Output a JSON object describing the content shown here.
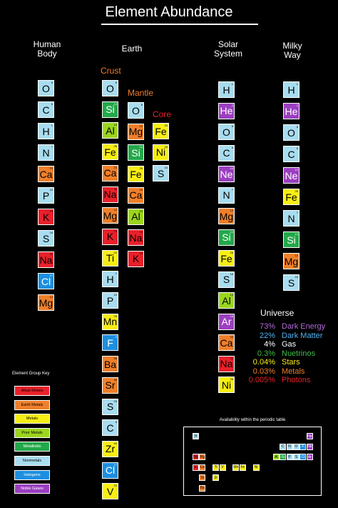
{
  "title": "Element Abundance",
  "colors": {
    "nonmetal": "#a8dcef",
    "noble": "#9b3fc0",
    "alkali": "#e8202a",
    "earth": "#f07f2a",
    "metal": "#f7ee14",
    "poor": "#9bd51d",
    "metalloid": "#23a84a",
    "halogen": "#1d8fe0"
  },
  "columns": {
    "human": {
      "heading_line1": "Human",
      "heading_line2": "Body",
      "elements": [
        {
          "sym": "O",
          "num": "8",
          "g": "nonmetal"
        },
        {
          "sym": "C",
          "num": "6",
          "g": "nonmetal"
        },
        {
          "sym": "H",
          "num": "1",
          "g": "nonmetal"
        },
        {
          "sym": "N",
          "num": "7",
          "g": "nonmetal"
        },
        {
          "sym": "Ca",
          "num": "20",
          "g": "earth"
        },
        {
          "sym": "P",
          "num": "15",
          "g": "nonmetal"
        },
        {
          "sym": "K",
          "num": "19",
          "g": "alkali"
        },
        {
          "sym": "S",
          "num": "16",
          "g": "nonmetal"
        },
        {
          "sym": "Na",
          "num": "11",
          "g": "alkali"
        },
        {
          "sym": "Cl",
          "num": "17",
          "g": "halogen"
        },
        {
          "sym": "Mg",
          "num": "12",
          "g": "earth"
        }
      ]
    },
    "earth": {
      "heading": "Earth",
      "crust_label": "Crust",
      "mantle_label": "Mantle",
      "core_label": "Core",
      "crust": [
        {
          "sym": "O",
          "num": "8",
          "g": "nonmetal"
        },
        {
          "sym": "Si",
          "num": "14",
          "g": "metalloid"
        },
        {
          "sym": "Al",
          "num": "13",
          "g": "poor"
        },
        {
          "sym": "Fe",
          "num": "26",
          "g": "metal"
        },
        {
          "sym": "Ca",
          "num": "20",
          "g": "earth"
        },
        {
          "sym": "Na",
          "num": "11",
          "g": "alkali"
        },
        {
          "sym": "Mg",
          "num": "12",
          "g": "earth"
        },
        {
          "sym": "K",
          "num": "19",
          "g": "alkali"
        },
        {
          "sym": "Ti",
          "num": "22",
          "g": "metal"
        },
        {
          "sym": "H",
          "num": "1",
          "g": "nonmetal"
        },
        {
          "sym": "P",
          "num": "15",
          "g": "nonmetal"
        },
        {
          "sym": "Mn",
          "num": "25",
          "g": "metal"
        },
        {
          "sym": "F",
          "num": "9",
          "g": "halogen"
        },
        {
          "sym": "Ba",
          "num": "56",
          "g": "earth"
        },
        {
          "sym": "Sr",
          "num": "38",
          "g": "earth"
        },
        {
          "sym": "S",
          "num": "16",
          "g": "nonmetal"
        },
        {
          "sym": "C",
          "num": "6",
          "g": "nonmetal"
        },
        {
          "sym": "Zr",
          "num": "40",
          "g": "metal"
        },
        {
          "sym": "Cl",
          "num": "17",
          "g": "halogen"
        },
        {
          "sym": "V",
          "num": "23",
          "g": "metal"
        }
      ],
      "mantle": [
        {
          "sym": "O",
          "num": "8",
          "g": "nonmetal"
        },
        {
          "sym": "Mg",
          "num": "12",
          "g": "earth"
        },
        {
          "sym": "Si",
          "num": "14",
          "g": "metalloid"
        },
        {
          "sym": "Fe",
          "num": "26",
          "g": "metal"
        },
        {
          "sym": "Ca",
          "num": "20",
          "g": "earth"
        },
        {
          "sym": "Al",
          "num": "13",
          "g": "poor"
        },
        {
          "sym": "Na",
          "num": "11",
          "g": "alkali"
        },
        {
          "sym": "K",
          "num": "19",
          "g": "alkali"
        }
      ],
      "core": [
        {
          "sym": "Fe",
          "num": "26",
          "g": "metal"
        },
        {
          "sym": "Ni",
          "num": "28",
          "g": "metal"
        },
        {
          "sym": "S",
          "num": "16",
          "g": "nonmetal"
        }
      ]
    },
    "solar": {
      "heading_line1": "Solar",
      "heading_line2": "System",
      "elements": [
        {
          "sym": "H",
          "num": "1",
          "g": "nonmetal"
        },
        {
          "sym": "He",
          "num": "2",
          "g": "noble"
        },
        {
          "sym": "O",
          "num": "8",
          "g": "nonmetal"
        },
        {
          "sym": "C",
          "num": "6",
          "g": "nonmetal"
        },
        {
          "sym": "Ne",
          "num": "10",
          "g": "noble"
        },
        {
          "sym": "N",
          "num": "7",
          "g": "nonmetal"
        },
        {
          "sym": "Mg",
          "num": "12",
          "g": "earth"
        },
        {
          "sym": "Si",
          "num": "14",
          "g": "metalloid"
        },
        {
          "sym": "Fe",
          "num": "26",
          "g": "metal"
        },
        {
          "sym": "S",
          "num": "16",
          "g": "nonmetal"
        },
        {
          "sym": "Al",
          "num": "13",
          "g": "poor"
        },
        {
          "sym": "Ar",
          "num": "18",
          "g": "noble"
        },
        {
          "sym": "Ca",
          "num": "20",
          "g": "earth"
        },
        {
          "sym": "Na",
          "num": "11",
          "g": "alkali"
        },
        {
          "sym": "Ni",
          "num": "28",
          "g": "metal"
        }
      ]
    },
    "milky": {
      "heading_line1": "Milky",
      "heading_line2": "Way",
      "elements": [
        {
          "sym": "H",
          "num": "1",
          "g": "nonmetal"
        },
        {
          "sym": "He",
          "num": "2",
          "g": "noble"
        },
        {
          "sym": "O",
          "num": "8",
          "g": "nonmetal"
        },
        {
          "sym": "C",
          "num": "6",
          "g": "nonmetal"
        },
        {
          "sym": "Ne",
          "num": "10",
          "g": "noble"
        },
        {
          "sym": "Fe",
          "num": "26",
          "g": "metal"
        },
        {
          "sym": "N",
          "num": "7",
          "g": "nonmetal"
        },
        {
          "sym": "Si",
          "num": "14",
          "g": "metalloid"
        },
        {
          "sym": "Mg",
          "num": "12",
          "g": "earth"
        },
        {
          "sym": "S",
          "num": "16",
          "g": "nonmetal"
        }
      ]
    }
  },
  "universe": {
    "heading": "Universe",
    "rows": [
      {
        "pct": "73%",
        "label": "Dark Energy",
        "color": "#b36ad9"
      },
      {
        "pct": "22%",
        "label": "Dark Matter",
        "color": "#4fb3f2"
      },
      {
        "pct": "4%",
        "label": "Gas",
        "color": "#ffffff"
      },
      {
        "pct": "0.3%",
        "label": "Nuetrinos",
        "color": "#3fbf4a"
      },
      {
        "pct": "0.04%",
        "label": "Stars",
        "color": "#f7ee14"
      },
      {
        "pct": "0.03%",
        "label": "Metals",
        "color": "#f07f2a"
      },
      {
        "pct": "0.005%",
        "label": "Photons",
        "color": "#e8202a"
      }
    ]
  },
  "key": {
    "title": "Element Group Key",
    "items": [
      {
        "label": "Alkali Metals",
        "g": "alkali"
      },
      {
        "label": "Earth Metals",
        "g": "earth"
      },
      {
        "label": "Metals",
        "g": "metal"
      },
      {
        "label": "Poor Metals",
        "g": "poor"
      },
      {
        "label": "Metalloids",
        "g": "metalloid"
      },
      {
        "label": "Nonmetals",
        "g": "nonmetal"
      },
      {
        "label": "Halogens",
        "g": "halogen"
      },
      {
        "label": "Noble Gases",
        "g": "noble"
      }
    ]
  },
  "periodic": {
    "title": "Availability within the periodic table",
    "cells": [
      {
        "sym": "H",
        "row": 1,
        "col": 1,
        "g": "nonmetal"
      },
      {
        "sym": "He",
        "row": 1,
        "col": 18,
        "g": "noble"
      },
      {
        "sym": "C",
        "row": 2,
        "col": 14,
        "g": "nonmetal"
      },
      {
        "sym": "N",
        "row": 2,
        "col": 15,
        "g": "nonmetal"
      },
      {
        "sym": "O",
        "row": 2,
        "col": 16,
        "g": "nonmetal"
      },
      {
        "sym": "F",
        "row": 2,
        "col": 17,
        "g": "halogen"
      },
      {
        "sym": "Ne",
        "row": 2,
        "col": 18,
        "g": "noble"
      },
      {
        "sym": "Na",
        "row": 3,
        "col": 1,
        "g": "alkali"
      },
      {
        "sym": "Mg",
        "row": 3,
        "col": 2,
        "g": "earth"
      },
      {
        "sym": "Al",
        "row": 3,
        "col": 13,
        "g": "poor"
      },
      {
        "sym": "Si",
        "row": 3,
        "col": 14,
        "g": "metalloid"
      },
      {
        "sym": "P",
        "row": 3,
        "col": 15,
        "g": "nonmetal"
      },
      {
        "sym": "S",
        "row": 3,
        "col": 16,
        "g": "nonmetal"
      },
      {
        "sym": "Cl",
        "row": 3,
        "col": 17,
        "g": "halogen"
      },
      {
        "sym": "Ar",
        "row": 3,
        "col": 18,
        "g": "noble"
      },
      {
        "sym": "K",
        "row": 4,
        "col": 1,
        "g": "alkali"
      },
      {
        "sym": "Ca",
        "row": 4,
        "col": 2,
        "g": "earth"
      },
      {
        "sym": "Ti",
        "row": 4,
        "col": 4,
        "g": "metal"
      },
      {
        "sym": "V",
        "row": 4,
        "col": 5,
        "g": "metal"
      },
      {
        "sym": "Mn",
        "row": 4,
        "col": 7,
        "g": "metal"
      },
      {
        "sym": "Fe",
        "row": 4,
        "col": 8,
        "g": "metal"
      },
      {
        "sym": "Ni",
        "row": 4,
        "col": 10,
        "g": "metal"
      },
      {
        "sym": "Sr",
        "row": 5,
        "col": 2,
        "g": "earth"
      },
      {
        "sym": "Zr",
        "row": 5,
        "col": 4,
        "g": "metal"
      },
      {
        "sym": "Ba",
        "row": 6,
        "col": 2,
        "g": "earth"
      }
    ]
  }
}
